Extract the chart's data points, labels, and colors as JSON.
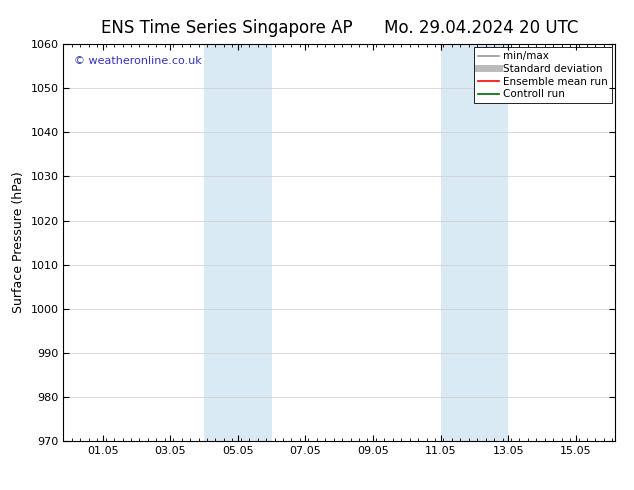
{
  "title_left": "ENS Time Series Singapore AP",
  "title_right": "Mo. 29.04.2024 20 UTC",
  "ylabel": "Surface Pressure (hPa)",
  "ylim": [
    970,
    1060
  ],
  "yticks": [
    970,
    980,
    990,
    1000,
    1010,
    1020,
    1030,
    1040,
    1050,
    1060
  ],
  "xtick_labels": [
    "01.05",
    "03.05",
    "05.05",
    "07.05",
    "09.05",
    "11.05",
    "13.05",
    "15.05"
  ],
  "xtick_positions": [
    1.167,
    3.167,
    5.167,
    7.167,
    9.167,
    11.167,
    13.167,
    15.167
  ],
  "xlim": [
    0.0,
    16.33
  ],
  "shaded_regions": [
    {
      "x_start": 4.167,
      "x_end": 6.167
    },
    {
      "x_start": 11.167,
      "x_end": 13.167
    }
  ],
  "shaded_color": "#daeaf5",
  "background_color": "#ffffff",
  "watermark_text": "© weatheronline.co.uk",
  "watermark_color": "#3333bb",
  "legend_items": [
    {
      "label": "min/max",
      "color": "#999999",
      "lw": 1.2
    },
    {
      "label": "Standard deviation",
      "color": "#bbbbbb",
      "lw": 5
    },
    {
      "label": "Ensemble mean run",
      "color": "#ff0000",
      "lw": 1.2
    },
    {
      "label": "Controll run",
      "color": "#006600",
      "lw": 1.2
    }
  ],
  "grid_color": "#cccccc",
  "grid_lw": 0.5,
  "title_fontsize": 12,
  "ylabel_fontsize": 9,
  "tick_fontsize": 8,
  "legend_fontsize": 7.5,
  "watermark_fontsize": 8,
  "fig_bg_color": "#ffffff"
}
